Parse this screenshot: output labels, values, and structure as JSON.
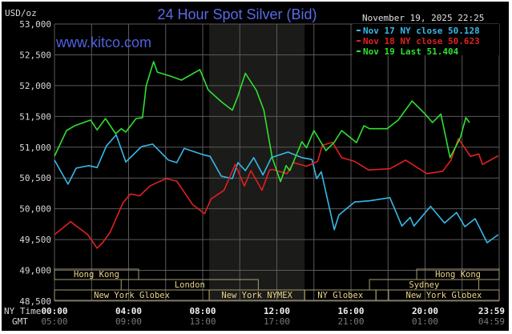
{
  "chart_data": {
    "type": "line",
    "title": "24 Hour Spot Silver (Bid)",
    "watermark": "www.kitco.com",
    "timestamp": "November 19, 2025 22:25",
    "ylabel": "USD/oz",
    "ylim": [
      48500,
      53000
    ],
    "ytick_step": 500,
    "yticks": [
      "53,000",
      "52,500",
      "52,000",
      "51,500",
      "51,000",
      "50,500",
      "50,000",
      "49,500",
      "49,000",
      "48,500"
    ],
    "xlim": [
      0,
      24
    ],
    "x_row_labels": {
      "ny": "NY Time",
      "gmt": "GMT"
    },
    "xticks": [
      {
        "hour": 0,
        "ny": "00:00",
        "gmt": "05:00"
      },
      {
        "hour": 4,
        "ny": "04:00",
        "gmt": "09:00"
      },
      {
        "hour": 8,
        "ny": "08:00",
        "gmt": "13:00"
      },
      {
        "hour": 12,
        "ny": "12:00",
        "gmt": "17:00"
      },
      {
        "hour": 16,
        "ny": "16:00",
        "gmt": "21:00"
      },
      {
        "hour": 20,
        "ny": "20:00",
        "gmt": "01:00"
      },
      {
        "hour": 23.98,
        "ny": "23:59",
        "gmt": "04:59"
      }
    ],
    "grid": true,
    "shaded_session_hours": [
      8.35,
      13.5
    ],
    "legend_position": "top-right",
    "series": [
      {
        "name": "Nov 17 NY close 50.128",
        "color": "#38b8e8",
        "points": [
          [
            0,
            50790
          ],
          [
            0.73,
            50400
          ],
          [
            1.17,
            50660
          ],
          [
            1.85,
            50700
          ],
          [
            2.3,
            50670
          ],
          [
            2.8,
            51020
          ],
          [
            3.33,
            51200
          ],
          [
            3.85,
            50760
          ],
          [
            4.7,
            51010
          ],
          [
            5.3,
            51050
          ],
          [
            6.15,
            50790
          ],
          [
            6.6,
            50750
          ],
          [
            7.0,
            50980
          ],
          [
            8.0,
            50880
          ],
          [
            8.4,
            50850
          ],
          [
            9.0,
            50530
          ],
          [
            9.6,
            50490
          ],
          [
            9.9,
            50750
          ],
          [
            10.3,
            50620
          ],
          [
            10.75,
            50830
          ],
          [
            11.25,
            50550
          ],
          [
            11.7,
            50830
          ],
          [
            12.6,
            50920
          ],
          [
            13.35,
            50830
          ],
          [
            13.9,
            50800
          ],
          [
            14.15,
            50490
          ],
          [
            14.4,
            50600
          ],
          [
            15.1,
            49660
          ],
          [
            15.35,
            49900
          ],
          [
            16.2,
            50110
          ],
          [
            17.0,
            50130
          ],
          [
            18.1,
            50180
          ],
          [
            18.75,
            49720
          ],
          [
            19.2,
            49860
          ],
          [
            19.4,
            49720
          ],
          [
            20.3,
            50040
          ],
          [
            21.05,
            49770
          ],
          [
            21.7,
            49940
          ],
          [
            22.15,
            49710
          ],
          [
            22.7,
            49840
          ],
          [
            23.35,
            49450
          ],
          [
            23.95,
            49580
          ]
        ]
      },
      {
        "name": "Nov 18 NY close 50.623",
        "color": "#e02020",
        "points": [
          [
            0,
            49580
          ],
          [
            0.87,
            49790
          ],
          [
            1.8,
            49580
          ],
          [
            2.3,
            49360
          ],
          [
            2.6,
            49450
          ],
          [
            3.0,
            49620
          ],
          [
            3.7,
            50100
          ],
          [
            4.1,
            50240
          ],
          [
            4.6,
            50210
          ],
          [
            5.15,
            50370
          ],
          [
            6.0,
            50490
          ],
          [
            6.6,
            50450
          ],
          [
            7.45,
            50070
          ],
          [
            8.1,
            49920
          ],
          [
            8.45,
            50160
          ],
          [
            9.15,
            50300
          ],
          [
            9.75,
            50720
          ],
          [
            10.25,
            50370
          ],
          [
            10.6,
            50620
          ],
          [
            11.2,
            50300
          ],
          [
            11.6,
            50630
          ],
          [
            11.75,
            50640
          ],
          [
            12.55,
            50570
          ],
          [
            12.9,
            50750
          ],
          [
            13.6,
            50690
          ],
          [
            14.2,
            50770
          ],
          [
            14.45,
            51030
          ],
          [
            15.0,
            51080
          ],
          [
            15.5,
            50830
          ],
          [
            16.2,
            50770
          ],
          [
            16.95,
            50630
          ],
          [
            18.1,
            50650
          ],
          [
            18.95,
            50790
          ],
          [
            20.1,
            50570
          ],
          [
            20.95,
            50610
          ],
          [
            21.4,
            50790
          ],
          [
            21.8,
            51140
          ],
          [
            22.45,
            50850
          ],
          [
            22.9,
            50890
          ],
          [
            23.1,
            50720
          ],
          [
            23.95,
            50860
          ]
        ]
      },
      {
        "name": "Nov 19 Last 51.404",
        "color": "#30e030",
        "points": [
          [
            0,
            50854
          ],
          [
            0.65,
            51270
          ],
          [
            1.1,
            51350
          ],
          [
            1.95,
            51440
          ],
          [
            2.3,
            51280
          ],
          [
            2.75,
            51465
          ],
          [
            3.3,
            51220
          ],
          [
            3.6,
            51300
          ],
          [
            3.85,
            51245
          ],
          [
            4.4,
            51465
          ],
          [
            4.75,
            51480
          ],
          [
            4.95,
            52000
          ],
          [
            5.35,
            52390
          ],
          [
            5.55,
            52220
          ],
          [
            6.3,
            52150
          ],
          [
            6.85,
            52090
          ],
          [
            7.85,
            52260
          ],
          [
            8.3,
            51930
          ],
          [
            9.0,
            51740
          ],
          [
            9.6,
            51600
          ],
          [
            9.9,
            51830
          ],
          [
            10.3,
            52200
          ],
          [
            10.9,
            51920
          ],
          [
            11.3,
            51600
          ],
          [
            11.75,
            50830
          ],
          [
            12.2,
            50440
          ],
          [
            12.5,
            50700
          ],
          [
            12.7,
            50620
          ],
          [
            13.35,
            51090
          ],
          [
            13.6,
            50990
          ],
          [
            14.0,
            51270
          ],
          [
            14.65,
            50945
          ],
          [
            15.1,
            51080
          ],
          [
            15.5,
            51270
          ],
          [
            16.3,
            51075
          ],
          [
            16.7,
            51350
          ],
          [
            17.0,
            51300
          ],
          [
            17.95,
            51300
          ],
          [
            18.55,
            51440
          ],
          [
            19.3,
            51750
          ],
          [
            20.0,
            51540
          ],
          [
            20.4,
            51400
          ],
          [
            20.85,
            51540
          ],
          [
            21.35,
            50830
          ],
          [
            21.9,
            51150
          ],
          [
            22.2,
            51480
          ],
          [
            22.4,
            51400
          ]
        ]
      }
    ],
    "sessions": [
      {
        "label": "Hong Kong",
        "row": 0,
        "start": 0,
        "end": 4.54
      },
      {
        "label": "London",
        "row": 1,
        "start": 3.6,
        "end": 11.0
      },
      {
        "label": "New York Globex",
        "row": 2,
        "start": 0,
        "end": 8.35
      },
      {
        "label": "New York NYMEX",
        "row": 2,
        "start": 8.35,
        "end": 13.5
      },
      {
        "label": "NY Globex",
        "row": 2,
        "start": 13.5,
        "end": 17.35
      },
      {
        "label": "",
        "row": 2,
        "start": 17.35,
        "end": 18.03
      },
      {
        "label": "New York Globex",
        "row": 2,
        "start": 18.03,
        "end": 24
      },
      {
        "label": "Sydney",
        "row": 1,
        "start": 17.0,
        "end": 22.9
      },
      {
        "label": "Hong Kong",
        "row": 0,
        "start": 19.55,
        "end": 24
      }
    ]
  }
}
